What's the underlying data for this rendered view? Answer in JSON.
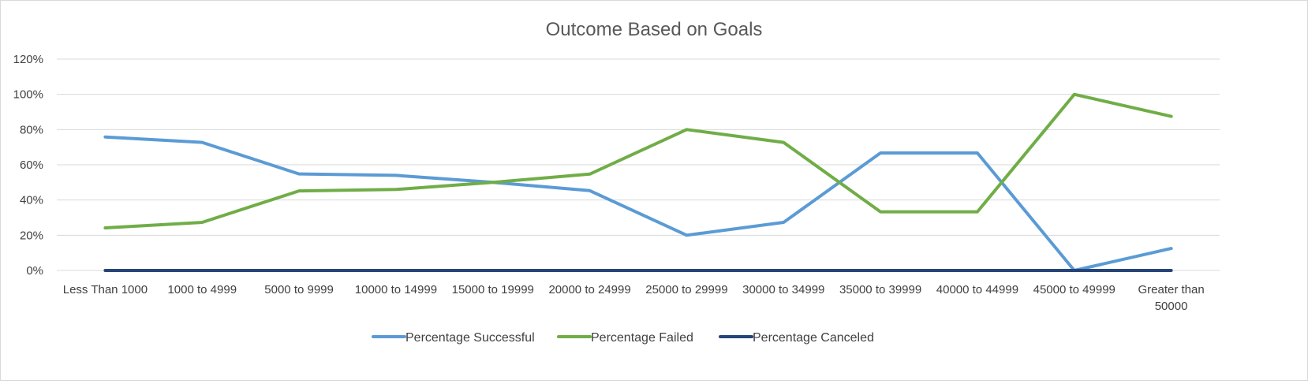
{
  "chart_data": {
    "type": "line",
    "title": "Outcome Based on Goals",
    "xlabel": "",
    "ylabel": "",
    "ylim": [
      0,
      120
    ],
    "y_ticks": [
      0,
      20,
      40,
      60,
      80,
      100,
      120
    ],
    "y_tick_labels": [
      "0%",
      "20%",
      "40%",
      "60%",
      "80%",
      "100%",
      "120%"
    ],
    "grid": true,
    "legend_position": "bottom",
    "categories": [
      "Less Than 1000",
      "1000 to 4999",
      "5000 to 9999",
      "10000 to 14999",
      "15000 to 19999",
      "20000 to 24999",
      "25000 to 29999",
      "30000 to 34999",
      "35000 to 39999",
      "40000 to 44999",
      "45000 to 49999",
      "Greater than 50000"
    ],
    "category_label_lines": [
      [
        "Less Than 1000"
      ],
      [
        "1000 to 4999"
      ],
      [
        "5000 to 9999"
      ],
      [
        "10000 to 14999"
      ],
      [
        "15000 to 19999"
      ],
      [
        "20000 to 24999"
      ],
      [
        "25000 to 29999"
      ],
      [
        "30000 to 34999"
      ],
      [
        "35000 to 39999"
      ],
      [
        "40000 to 44999"
      ],
      [
        "45000 to 49999"
      ],
      [
        "Greater than",
        "50000"
      ]
    ],
    "series": [
      {
        "name": "Percentage Successful",
        "color": "#5b9bd5",
        "values": [
          75.8,
          72.7,
          54.8,
          54.0,
          50.0,
          45.3,
          20.0,
          27.3,
          66.7,
          66.7,
          0.0,
          12.5
        ]
      },
      {
        "name": "Percentage Failed",
        "color": "#70ad47",
        "values": [
          24.2,
          27.3,
          45.2,
          46.0,
          50.0,
          54.7,
          80.0,
          72.7,
          33.3,
          33.3,
          100.0,
          87.5
        ]
      },
      {
        "name": "Percentage Canceled",
        "color": "#264478",
        "values": [
          0,
          0,
          0,
          0,
          0,
          0,
          0,
          0,
          0,
          0,
          0,
          0
        ]
      }
    ]
  }
}
